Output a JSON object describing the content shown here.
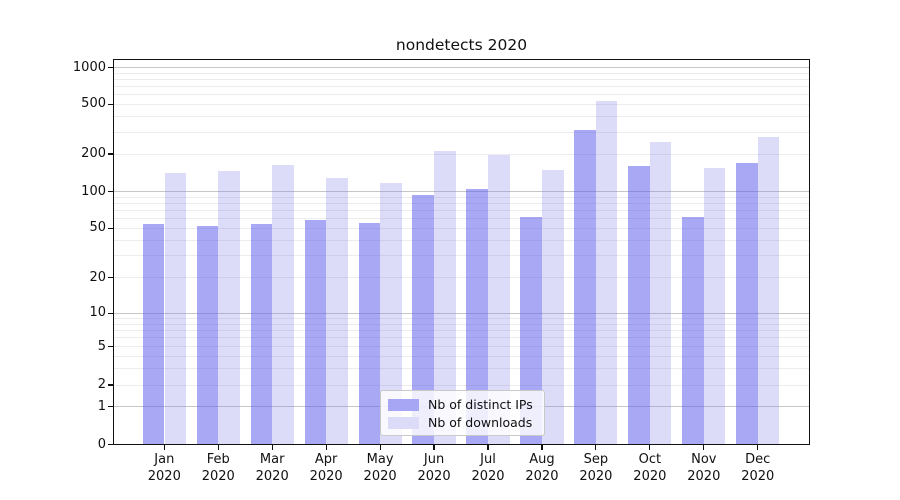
{
  "chart_data": {
    "type": "bar",
    "title": "nondetects 2020",
    "x_tick_months": [
      "Jan",
      "Feb",
      "Mar",
      "Apr",
      "May",
      "Jun",
      "Jul",
      "Aug",
      "Sep",
      "Oct",
      "Nov",
      "Dec"
    ],
    "x_tick_year": "2020",
    "categories": [
      "Jan 2020",
      "Feb 2020",
      "Mar 2020",
      "Apr 2020",
      "May 2020",
      "Jun 2020",
      "Jul 2020",
      "Aug 2020",
      "Sep 2020",
      "Oct 2020",
      "Nov 2020",
      "Dec 2020"
    ],
    "series": [
      {
        "name": "Nb of distinct IPs",
        "solid_color": "#a6a6f4",
        "fill_rgba": "rgba(97,97,235,0.55)",
        "values": [
          54,
          52,
          54,
          58,
          55,
          94,
          105,
          62,
          310,
          160,
          62,
          170
        ]
      },
      {
        "name": "Nb of downloads",
        "solid_color": "#dcdcf8",
        "fill_rgba": "rgba(130,130,234,0.28)",
        "values": [
          141,
          145,
          164,
          129,
          117,
          212,
          196,
          149,
          533,
          250,
          154,
          272
        ]
      }
    ],
    "yscale": "symlog",
    "ylim": [
      0,
      1000
    ],
    "yticks": [
      0,
      1,
      2,
      5,
      10,
      20,
      50,
      100,
      200,
      500,
      1000
    ],
    "grid": true,
    "grid_minor_color": "#ececec",
    "grid_major_color": "#c6c6c6",
    "legend": {
      "position": "lower center",
      "entries": [
        "Nb of distinct IPs",
        "Nb of downloads"
      ]
    }
  }
}
